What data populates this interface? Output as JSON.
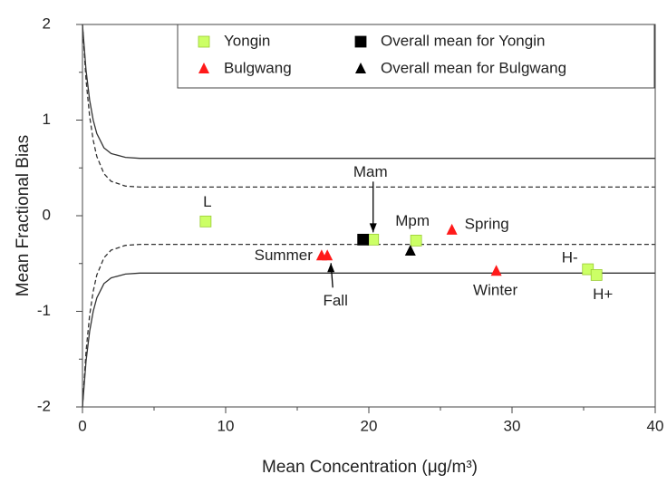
{
  "chart_data": {
    "type": "scatter",
    "x_label": "Mean Concentration (μg/m³)",
    "y_label": "Mean Fractional Bias",
    "xlim": [
      0,
      40
    ],
    "ylim": [
      -2,
      2
    ],
    "xticks": [
      0,
      10,
      20,
      30,
      40
    ],
    "yticks": [
      -2,
      -1,
      0,
      1,
      2
    ],
    "xticks_minor": [
      5,
      15,
      25,
      35
    ],
    "yticks_minor": [
      -1.5,
      -0.5,
      0.5,
      1.5
    ],
    "legend": "upper right",
    "series": [
      {
        "name": "Yongin",
        "color": "#ccff66",
        "marker": "square",
        "x": [
          8.6,
          20.3,
          23.3,
          35.3,
          35.9
        ],
        "values": [
          -0.06,
          -0.25,
          -0.26,
          -0.56,
          -0.62
        ],
        "point_labels": [
          "L",
          "Mam",
          "Mpm",
          "H-",
          "H+"
        ]
      },
      {
        "name": "Bulgwang",
        "color": "#ff1a1a",
        "marker": "triangle",
        "x": [
          25.8,
          16.7,
          17.1,
          28.9
        ],
        "values": [
          -0.15,
          -0.42,
          -0.42,
          -0.58
        ],
        "point_labels": [
          "Spring",
          "Summer",
          "Fall",
          "Winter"
        ]
      },
      {
        "name": "Overall mean for Yongin",
        "color": "#000000",
        "marker": "square",
        "x": [
          19.6
        ],
        "values": [
          -0.25
        ]
      },
      {
        "name": "Overall mean for Bulgwang",
        "color": "#000000",
        "marker": "triangle",
        "x": [
          22.9
        ],
        "values": [
          -0.37
        ]
      }
    ],
    "reference_curves": {
      "x": [
        0,
        0.25,
        0.5,
        0.75,
        1,
        1.5,
        2,
        3,
        4,
        40
      ],
      "lines": [
        {
          "style": "solid",
          "values": [
            2,
            1.52,
            1.21,
            1.0,
            0.86,
            0.71,
            0.65,
            0.61,
            0.6,
            0.6
          ]
        },
        {
          "style": "dashed",
          "values": [
            2,
            1.42,
            1.04,
            0.79,
            0.62,
            0.44,
            0.36,
            0.31,
            0.3,
            0.3
          ]
        },
        {
          "style": "dashed",
          "values": [
            -2,
            -1.42,
            -1.04,
            -0.79,
            -0.62,
            -0.44,
            -0.36,
            -0.31,
            -0.3,
            -0.3
          ]
        },
        {
          "style": "solid",
          "values": [
            -2,
            -1.52,
            -1.21,
            -1.0,
            -0.86,
            -0.71,
            -0.65,
            -0.61,
            -0.6,
            -0.6
          ]
        }
      ]
    }
  }
}
